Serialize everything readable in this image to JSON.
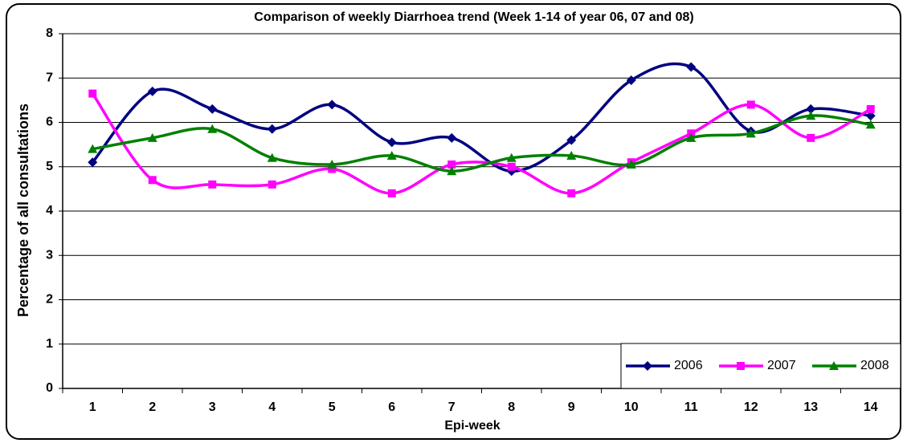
{
  "chart_data": {
    "type": "line",
    "title": "Comparison of weekly Diarrhoea trend (Week 1-14 of year 06, 07 and 08)",
    "x_label": "Epi-week",
    "y_label": "Percentage of all consultations",
    "categories": [
      "1",
      "2",
      "3",
      "4",
      "5",
      "6",
      "7",
      "8",
      "9",
      "10",
      "11",
      "12",
      "13",
      "14"
    ],
    "series": [
      {
        "name": "2006",
        "color": "#000080",
        "marker": "diamond",
        "values": [
          5.1,
          6.7,
          6.3,
          5.85,
          6.4,
          5.55,
          5.65,
          4.9,
          5.6,
          6.95,
          7.25,
          5.8,
          6.3,
          6.15
        ]
      },
      {
        "name": "2007",
        "color": "#ff00ff",
        "marker": "square",
        "values": [
          6.65,
          4.7,
          4.6,
          4.6,
          4.95,
          4.4,
          5.05,
          5.0,
          4.4,
          5.1,
          5.75,
          6.4,
          5.65,
          6.3
        ]
      },
      {
        "name": "2008",
        "color": "#008000",
        "marker": "triangle",
        "values": [
          5.4,
          5.65,
          5.85,
          5.2,
          5.05,
          5.25,
          4.9,
          5.2,
          5.25,
          5.05,
          5.65,
          5.75,
          6.15,
          5.95
        ]
      }
    ],
    "ylim": [
      0,
      8
    ],
    "yticks": [
      0,
      1,
      2,
      3,
      4,
      5,
      6,
      7,
      8
    ],
    "grid": true,
    "smooth": true,
    "legend": "lower right"
  }
}
